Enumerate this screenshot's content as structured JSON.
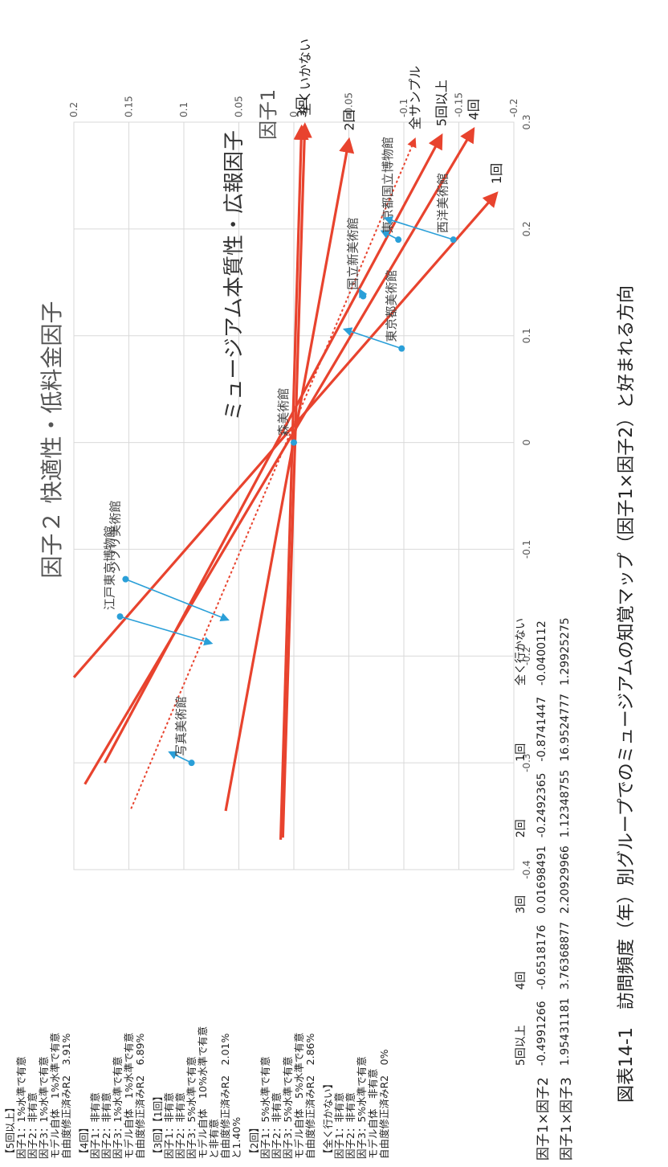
{
  "caption": "図表14-1　訪問頻度（年）別グループでのミュージアムの知覚マップ（因子1×因子2）と好まれる方向",
  "chart_data": {
    "type": "scatter",
    "xlabel": "因子２ 快適性・低料金因子",
    "ylabel": "ミュージアム本質性・広報因子",
    "ylabel_box": "因子1",
    "xlim": [
      -0.4,
      0.3
    ],
    "ylim": [
      -0.2,
      0.2
    ],
    "x_ticks": [
      "-0.4",
      "-0.3",
      "-0.2",
      "-0.1",
      "0",
      "0.1",
      "0.2",
      "0.3"
    ],
    "y_ticks": [
      "-0.2",
      "-0.15",
      "-0.1",
      "-0.05",
      "0",
      "0.05",
      "0.1",
      "0.15",
      "0.2"
    ],
    "grid": true,
    "museums": [
      {
        "name": "江戸東京博物館",
        "x": -0.163,
        "y": 0.158,
        "proj_x": -0.188,
        "proj_y": 0.075
      },
      {
        "name": "ジブリ美術館",
        "x": -0.128,
        "y": 0.153,
        "proj_x": -0.166,
        "proj_y": 0.06
      },
      {
        "name": "写真美術館",
        "x": -0.3,
        "y": 0.093,
        "proj_x": -0.29,
        "proj_y": 0.113
      },
      {
        "name": "森美術館",
        "x": 0.0,
        "y": 0.0,
        "proj_x": 0.0,
        "proj_y": 0.0
      },
      {
        "name": "国立新美術館",
        "x": 0.137,
        "y": -0.063,
        "proj_x": 0.143,
        "proj_y": -0.06
      },
      {
        "name": "東京都美術館",
        "x": 0.088,
        "y": -0.098,
        "proj_x": 0.106,
        "proj_y": -0.046
      },
      {
        "name": "東京都国立博物館",
        "x": 0.19,
        "y": -0.095,
        "proj_x": 0.198,
        "proj_y": -0.08
      },
      {
        "name": "西洋美術館",
        "x": 0.19,
        "y": -0.145,
        "proj_x": 0.21,
        "proj_y": -0.083
      }
    ],
    "vectors": [
      {
        "name": "3回",
        "x2": 0.295,
        "y2": -0.007,
        "x1": -0.372,
        "y1": 0.012,
        "style": "solid"
      },
      {
        "name": "全くいかない",
        "x2": 0.297,
        "y2": -0.01,
        "x1": -0.37,
        "y1": 0.01,
        "style": "solid"
      },
      {
        "name": "2回",
        "x2": 0.283,
        "y2": -0.05,
        "x1": -0.345,
        "y1": 0.062,
        "style": "solid"
      },
      {
        "name": "全サンプル",
        "x2": 0.284,
        "y2": -0.11,
        "x1": -0.343,
        "y1": 0.148,
        "style": "dotted"
      },
      {
        "name": "5回以上",
        "x2": 0.287,
        "y2": -0.134,
        "x1": -0.3,
        "y1": 0.172,
        "style": "solid"
      },
      {
        "name": "4回",
        "x2": 0.293,
        "y2": -0.163,
        "x1": -0.32,
        "y1": 0.19,
        "style": "solid"
      },
      {
        "name": "1回",
        "x2": 0.233,
        "y2": -0.184,
        "x1": -0.22,
        "y1": 0.2,
        "style": "solid"
      }
    ]
  },
  "notes": [
    {
      "title": "【5回以上】",
      "lines": [
        "因子1：1%水準で有意",
        "因子2：非有意",
        "因子3：1%水準で有意",
        "モデル自体　1%水準で有意",
        "自由度修正済みR2　3.91%"
      ]
    },
    {
      "title": "【4回】",
      "lines": [
        "因子1：非有意",
        "因子2：非有意",
        "因子3：1%水準で有意",
        "モデル自体　1%水準で有意",
        "自由度修正済みR2　6.89%"
      ]
    },
    {
      "title": "【3回】【1回】",
      "lines": [
        "因子1：非有意",
        "因子2：非有意",
        "因子3：5%水準で有意",
        "モデル自体　10%水準で有意",
        "と非有意",
        "自由度修正済みR2　2.01%",
        "と1.40%"
      ]
    },
    {
      "title": "【2回】",
      "lines": [
        "因子1：5%水準で有意",
        "因子2：非有意",
        "因子3：5%水準で有意",
        "モデル自体　5%水準で有意",
        "自由度修正済みR2　2.86%"
      ]
    },
    {
      "title": "【全く行かない】",
      "lines": [
        "因子1：非有意",
        "因子2：非有意",
        "因子3：5%水準で有意",
        "モデル自体　非有意",
        "自由度修正済みR2　0%"
      ]
    }
  ],
  "table": {
    "headers": [
      "",
      "5回以上",
      "4回",
      "3回",
      "2回",
      "1回",
      "全く行かない"
    ],
    "rows": [
      [
        "因子1×因子2",
        "-0.4991266",
        "-0.6518176",
        "0.01698491",
        "-0.2492365",
        "-0.8741447",
        "-0.0400112"
      ],
      [
        "因子1×因子3",
        "1.95431181",
        "3.76368877",
        "2.20929966",
        "1.12348755",
        "16.9524777",
        "1.29925275"
      ]
    ]
  },
  "colors": {
    "vector": "#e8432e",
    "point": "#2a9fd8",
    "grid": "#d9d9d9",
    "text": "#555555"
  }
}
